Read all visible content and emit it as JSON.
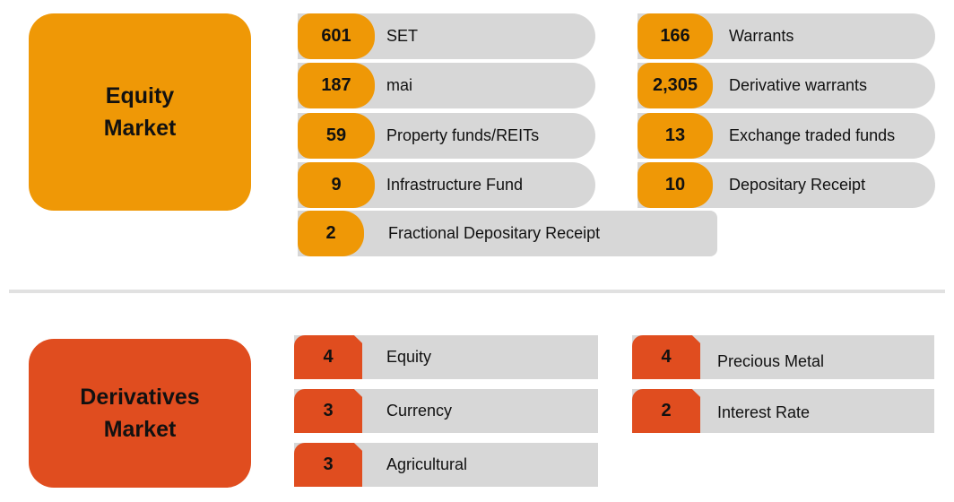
{
  "equity_market": {
    "title_line1": "Equity",
    "title_line2": "Market",
    "items": [
      {
        "value": "601",
        "label": "SET"
      },
      {
        "value": "187",
        "label": "mai"
      },
      {
        "value": "59",
        "label": "Property funds/REITs"
      },
      {
        "value": "9",
        "label": "Infrastructure Fund"
      },
      {
        "value": "2",
        "label": "Fractional Depositary Receipt"
      },
      {
        "value": "166",
        "label": "Warrants"
      },
      {
        "value": "2,305",
        "label": "Derivative warrants"
      },
      {
        "value": "13",
        "label": "Exchange traded funds"
      },
      {
        "value": "10",
        "label": "Depositary Receipt"
      }
    ]
  },
  "derivatives_market": {
    "title_line1": "Derivatives",
    "title_line2": "Market",
    "items": [
      {
        "value": "4",
        "label": "Equity"
      },
      {
        "value": "3",
        "label": "Currency"
      },
      {
        "value": "3",
        "label": "Agricultural"
      },
      {
        "value": "4",
        "label": "Precious Metal"
      },
      {
        "value": "2",
        "label": "Interest Rate"
      }
    ]
  },
  "colors": {
    "equity_accent": "#ef9806",
    "derivatives_accent": "#e04d1f",
    "item_background": "#d7d7d7",
    "divider": "#e1e1e1"
  }
}
